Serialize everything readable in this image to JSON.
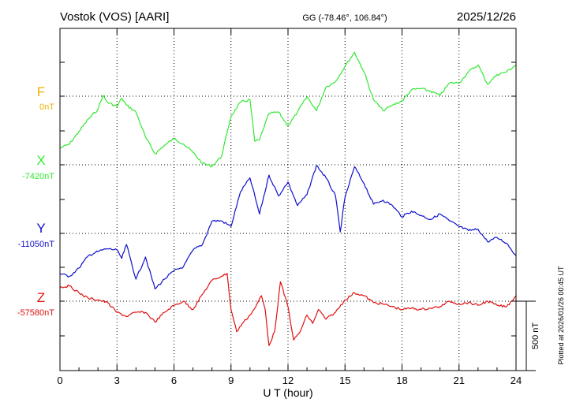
{
  "header": {
    "station": "Vostok (VOS)  [AARI]",
    "coords": "GG (-78.46°, 106.84°)",
    "date": "2025/12/26"
  },
  "side_note": "Plotted at 2026/01/26 00:45 UT",
  "scale_label": "500 nT",
  "colors": {
    "F": "#f0b000",
    "X": "#33e833",
    "Y": "#1010cc",
    "Z": "#e01010",
    "axis": "#000000"
  },
  "chart_data": {
    "type": "line",
    "xlabel": "U T (hour)",
    "xlim": [
      0,
      24
    ],
    "xticks": [
      "0",
      "3",
      "6",
      "9",
      "12",
      "15",
      "18",
      "21",
      "24"
    ],
    "grid": true,
    "scale_bar_nT": 500,
    "series": [
      {
        "name": "F",
        "baseline_label": "0nT",
        "baseline": 0,
        "hours": [],
        "values": []
      },
      {
        "name": "X",
        "baseline_label": "-7420nT",
        "baseline": -7420,
        "hours": [
          0,
          0.5,
          1,
          1.5,
          2,
          2.25,
          2.5,
          3,
          3.25,
          3.5,
          4,
          4.5,
          5,
          5.5,
          6,
          6.5,
          7,
          7.5,
          8,
          8.5,
          9,
          9.5,
          10,
          10.25,
          10.5,
          11,
          11.5,
          12,
          12.5,
          13,
          13.5,
          14,
          14.5,
          15,
          15.5,
          16,
          16.5,
          17,
          17.5,
          18,
          18.5,
          19,
          19.5,
          20,
          20.5,
          21,
          21.5,
          22,
          22.5,
          23,
          23.5,
          24
        ],
        "values": [
          -7300,
          -7270,
          -7180,
          -7090,
          -7020,
          -6920,
          -6970,
          -7000,
          -6940,
          -6990,
          -7040,
          -7220,
          -7340,
          -7280,
          -7230,
          -7270,
          -7330,
          -7410,
          -7430,
          -7360,
          -7070,
          -6970,
          -6950,
          -7250,
          -7240,
          -7050,
          -7040,
          -7140,
          -7040,
          -6930,
          -7030,
          -6860,
          -6820,
          -6710,
          -6610,
          -6750,
          -6950,
          -7030,
          -6990,
          -6960,
          -6880,
          -6870,
          -6890,
          -6920,
          -6830,
          -6830,
          -6750,
          -6700,
          -6840,
          -6770,
          -6750,
          -6700
        ]
      },
      {
        "name": "Y",
        "baseline_label": "-11050nT",
        "baseline": -11050,
        "hours": [
          0,
          0.5,
          1,
          1.5,
          2,
          2.5,
          3,
          3.25,
          3.5,
          4,
          4.5,
          5,
          5.5,
          6,
          6.5,
          7,
          7.5,
          8,
          8.5,
          9,
          9.5,
          10,
          10.5,
          11,
          11.5,
          12,
          12.5,
          13,
          13.5,
          14,
          14.5,
          14.75,
          15,
          15.5,
          16,
          16.5,
          17,
          17.5,
          18,
          18.5,
          19,
          19.5,
          20,
          20.5,
          21,
          21.5,
          22,
          22.5,
          23,
          23.5,
          24
        ],
        "values": [
          -11340,
          -11360,
          -11300,
          -11210,
          -11180,
          -11160,
          -11170,
          -11230,
          -11130,
          -11380,
          -11220,
          -11450,
          -11380,
          -11320,
          -11290,
          -11170,
          -11130,
          -10960,
          -10960,
          -11000,
          -10750,
          -10650,
          -10910,
          -10630,
          -10780,
          -10680,
          -10850,
          -10770,
          -10560,
          -10650,
          -10780,
          -11040,
          -10790,
          -10570,
          -10690,
          -10840,
          -10810,
          -10850,
          -10930,
          -10890,
          -10920,
          -10950,
          -10910,
          -10960,
          -11000,
          -11030,
          -11020,
          -11110,
          -11080,
          -11120,
          -11210
        ]
      },
      {
        "name": "Z",
        "baseline_label": "-57580nT",
        "baseline": -57580,
        "hours": [
          0,
          0.5,
          1,
          1.5,
          2,
          2.5,
          3,
          3.5,
          4,
          4.5,
          5,
          5.5,
          6,
          6.5,
          7,
          7.5,
          8,
          8.5,
          8.8,
          9,
          9.3,
          9.6,
          10,
          10.3,
          10.6,
          10.8,
          11,
          11.3,
          11.6,
          12,
          12.3,
          12.6,
          13,
          13.3,
          13.6,
          14,
          14.5,
          15,
          15.5,
          16,
          16.5,
          17,
          17.5,
          18,
          18.5,
          19,
          19.5,
          20,
          20.5,
          21,
          21.5,
          22,
          22.5,
          23,
          23.5,
          24
        ],
        "values": [
          -57480,
          -57470,
          -57520,
          -57560,
          -57570,
          -57590,
          -57660,
          -57690,
          -57660,
          -57660,
          -57730,
          -57660,
          -57610,
          -57580,
          -57640,
          -57530,
          -57430,
          -57400,
          -57380,
          -57640,
          -57800,
          -57740,
          -57680,
          -57620,
          -57540,
          -57640,
          -57900,
          -57800,
          -57440,
          -57620,
          -57860,
          -57810,
          -57680,
          -57740,
          -57640,
          -57710,
          -57660,
          -57570,
          -57520,
          -57540,
          -57590,
          -57600,
          -57620,
          -57640,
          -57630,
          -57640,
          -57630,
          -57620,
          -57580,
          -57600,
          -57590,
          -57610,
          -57580,
          -57610,
          -57620,
          -57540
        ]
      }
    ]
  }
}
